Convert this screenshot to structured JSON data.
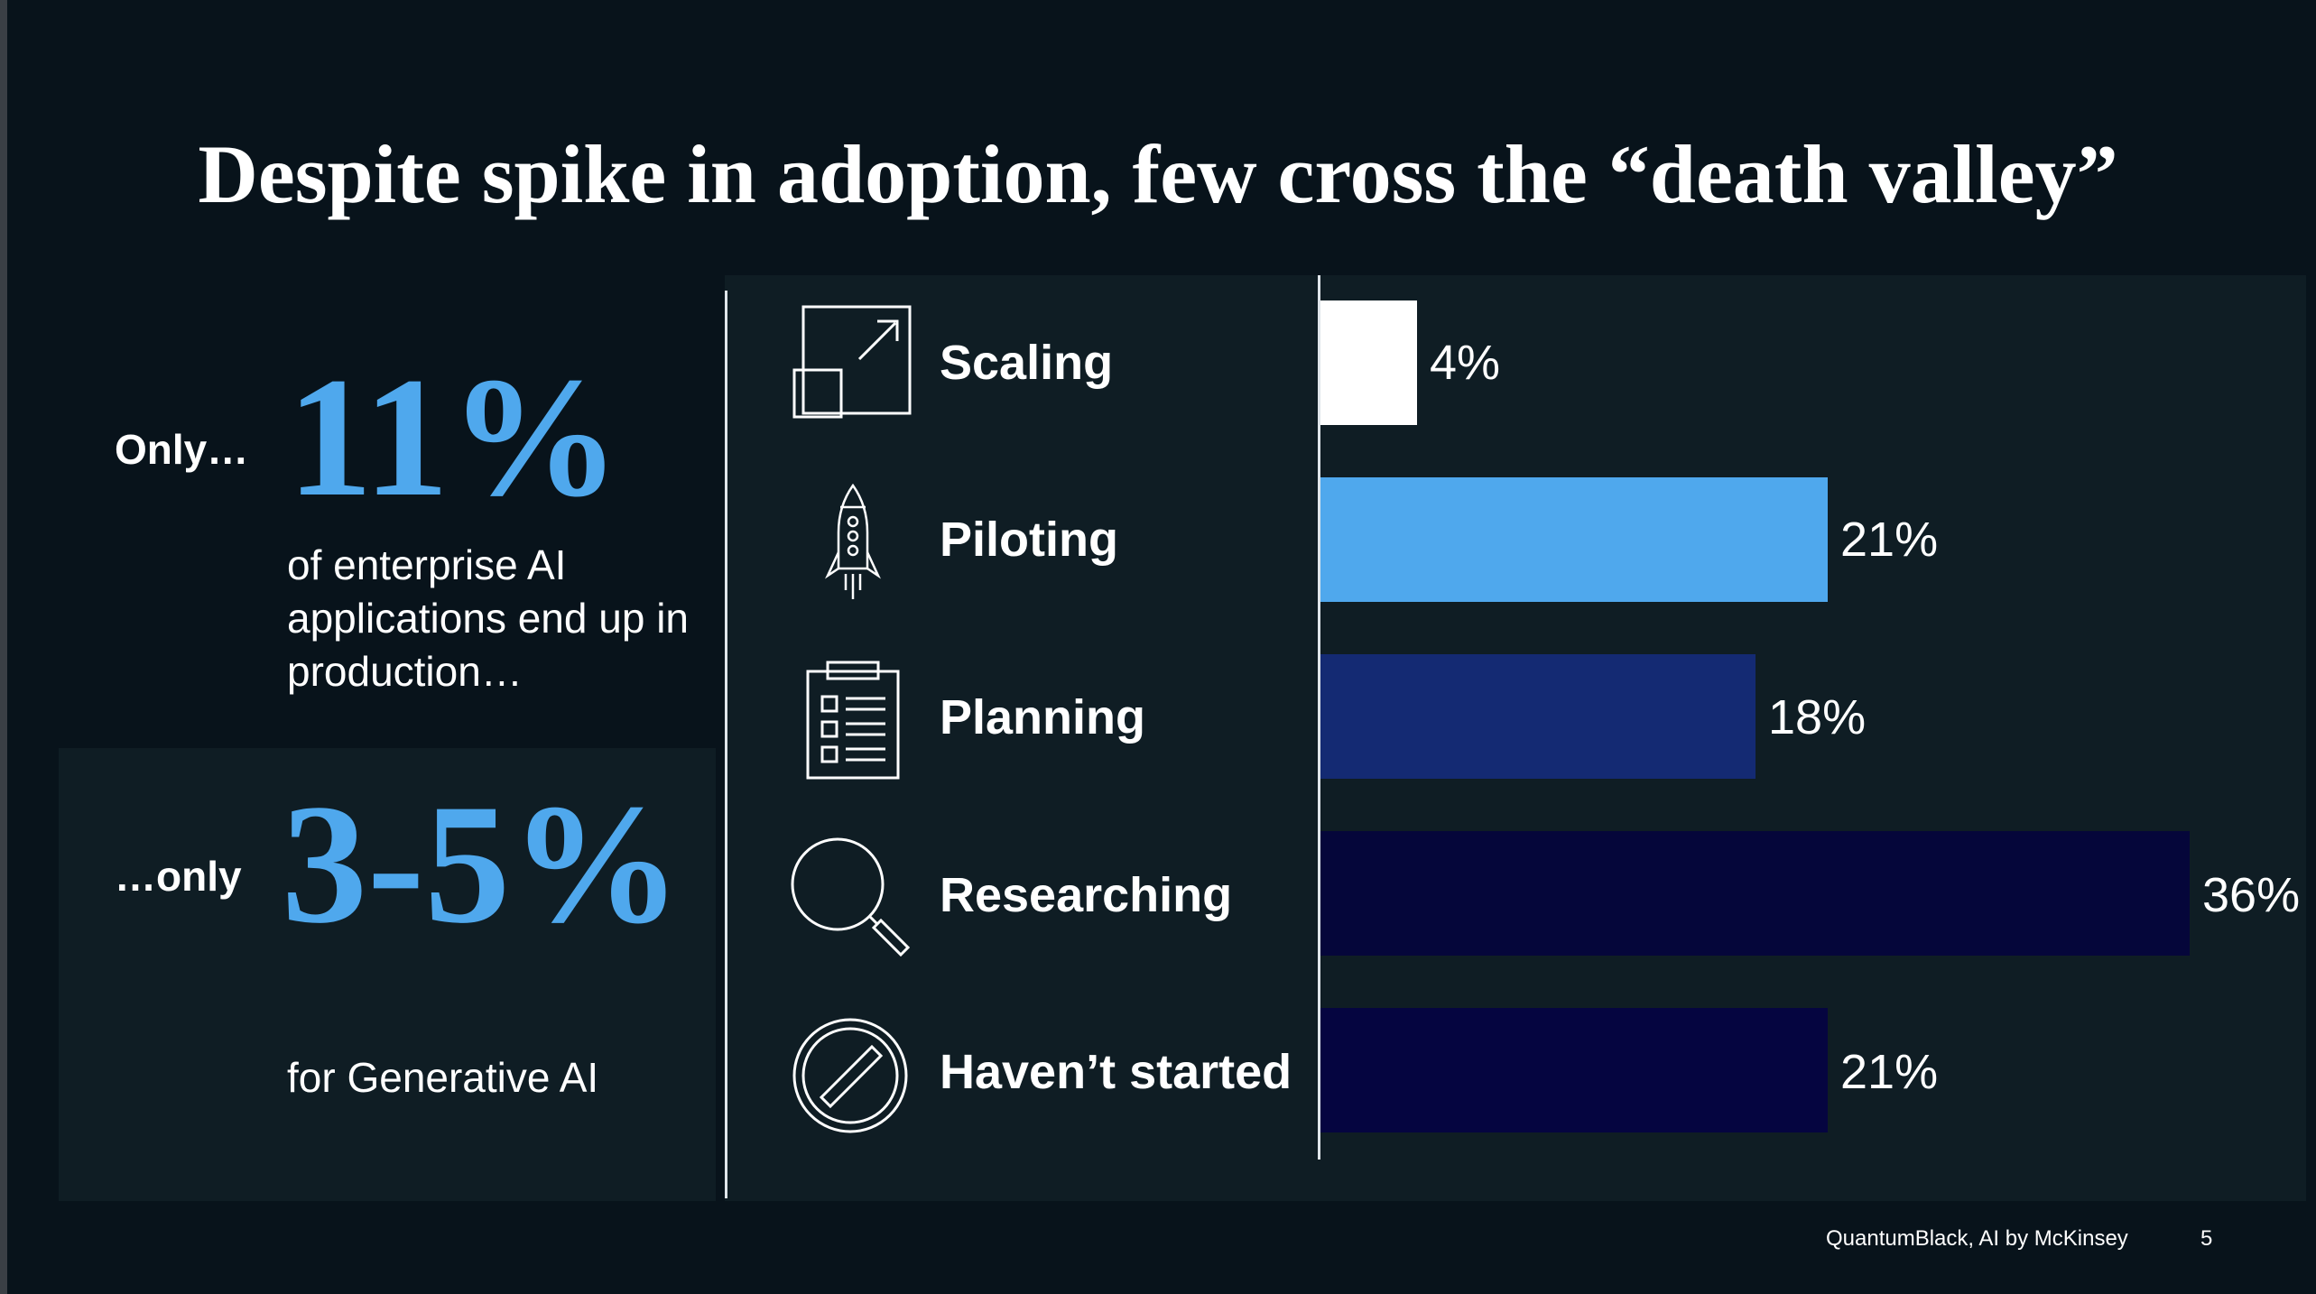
{
  "title": "Despite spike in adoption, few cross the “death valley”",
  "kpis": [
    {
      "label": "Only…",
      "value": "11%",
      "description": "of enterprise AI applications end up in production…"
    },
    {
      "label": "…only",
      "value": "3-5%",
      "description": "for Generative AI"
    }
  ],
  "chart_data": {
    "type": "bar",
    "orientation": "horizontal",
    "categories": [
      "Scaling",
      "Piloting",
      "Planning",
      "Researching",
      "Haven’t started"
    ],
    "values": [
      4,
      21,
      18,
      36,
      21
    ],
    "value_labels": [
      "4%",
      "21%",
      "18%",
      "36%",
      "21%"
    ],
    "unit": "%",
    "colors": [
      "#ffffff",
      "#4fa8ed",
      "#142a73",
      "#05063a",
      "#050540"
    ],
    "icons": [
      "scale-up-icon",
      "rocket-icon",
      "clipboard-checklist-icon",
      "magnifier-icon",
      "prohibited-icon"
    ],
    "xlim": [
      0,
      36
    ],
    "grid": false,
    "legend": "none"
  },
  "colors": {
    "background": "#08131b",
    "panel": "#0f1d24",
    "accent": "#4fa8ed"
  },
  "footer": {
    "source": "QuantumBlack, AI by McKinsey",
    "page_number": "5"
  }
}
